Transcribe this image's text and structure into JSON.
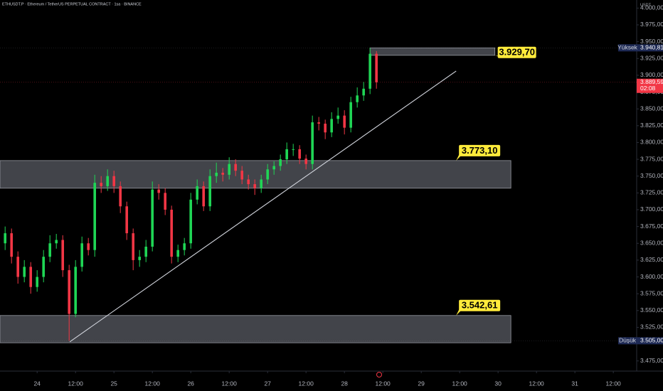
{
  "chart_data": {
    "type": "candlestick",
    "title": "ETHUSDT.P · Ethereum / TetherUS PERPETUAL CONTRACT · 1sa · BINANCE",
    "currency": "USDT",
    "up_color": "#1fd655",
    "down_color": "#f23645",
    "x": [
      -10,
      -8,
      -6,
      -4,
      -2,
      0,
      2,
      4,
      6,
      8,
      10,
      12,
      14,
      16,
      18,
      20,
      22,
      24,
      26,
      28,
      30,
      32,
      34,
      36,
      38,
      40,
      42,
      44,
      46,
      48,
      50,
      52,
      54,
      56,
      58,
      60,
      62,
      64,
      66,
      68,
      70,
      72,
      74,
      76,
      78,
      80,
      82,
      84,
      86,
      88,
      90,
      92,
      94,
      96,
      98,
      100,
      102,
      104,
      106
    ],
    "open": [
      3650,
      3665,
      3630,
      3600,
      3615,
      3585,
      3600,
      3630,
      3650,
      3655,
      3610,
      3545,
      3615,
      3650,
      3640,
      3740,
      3735,
      3750,
      3735,
      3705,
      3665,
      3625,
      3630,
      3645,
      3730,
      3725,
      3700,
      3630,
      3640,
      3650,
      3715,
      3735,
      3705,
      3750,
      3755,
      3752,
      3768,
      3758,
      3745,
      3738,
      3732,
      3745,
      3760,
      3765,
      3775,
      3790,
      3790,
      3776,
      3768,
      3830,
      3828,
      3815,
      3835,
      3840,
      3822,
      3860,
      3870,
      3880,
      3932
    ],
    "high": [
      3675,
      3672,
      3638,
      3625,
      3622,
      3610,
      3640,
      3662,
      3664,
      3662,
      3618,
      3625,
      3660,
      3658,
      3752,
      3750,
      3760,
      3758,
      3742,
      3712,
      3672,
      3640,
      3655,
      3742,
      3738,
      3732,
      3706,
      3648,
      3658,
      3725,
      3745,
      3742,
      3760,
      3770,
      3762,
      3778,
      3775,
      3765,
      3752,
      3745,
      3752,
      3768,
      3772,
      3782,
      3800,
      3798,
      3796,
      3782,
      3840,
      3838,
      3834,
      3845,
      3852,
      3848,
      3868,
      3882,
      3890,
      3940.81,
      3936
    ],
    "low": [
      3640,
      3620,
      3590,
      3592,
      3575,
      3578,
      3592,
      3622,
      3642,
      3600,
      3505,
      3540,
      3608,
      3632,
      3630,
      3725,
      3728,
      3725,
      3695,
      3655,
      3610,
      3615,
      3622,
      3638,
      3715,
      3692,
      3620,
      3622,
      3632,
      3642,
      3708,
      3698,
      3698,
      3740,
      3742,
      3745,
      3750,
      3738,
      3730,
      3722,
      3725,
      3738,
      3752,
      3758,
      3768,
      3780,
      3768,
      3760,
      3760,
      3818,
      3805,
      3808,
      3828,
      3812,
      3815,
      3852,
      3862,
      3872,
      3880
    ],
    "close": [
      3665,
      3630,
      3600,
      3615,
      3585,
      3600,
      3630,
      3650,
      3655,
      3610,
      3545,
      3615,
      3650,
      3640,
      3740,
      3735,
      3750,
      3735,
      3705,
      3665,
      3625,
      3630,
      3645,
      3730,
      3725,
      3700,
      3630,
      3640,
      3650,
      3715,
      3735,
      3705,
      3750,
      3755,
      3752,
      3768,
      3758,
      3745,
      3738,
      3732,
      3745,
      3760,
      3765,
      3775,
      3790,
      3790,
      3776,
      3768,
      3830,
      3828,
      3815,
      3835,
      3840,
      3822,
      3860,
      3870,
      3880,
      3932,
      3889.59
    ],
    "xlim": [
      -11.6,
      187.3
    ],
    "xticks": [
      {
        "value": 0,
        "label": "24"
      },
      {
        "value": 12,
        "label": "12:00"
      },
      {
        "value": 24,
        "label": "25"
      },
      {
        "value": 36,
        "label": "12:00"
      },
      {
        "value": 48,
        "label": "26"
      },
      {
        "value": 60,
        "label": "12:00"
      },
      {
        "value": 72,
        "label": "27"
      },
      {
        "value": 84,
        "label": "12:00"
      },
      {
        "value": 96,
        "label": "28"
      },
      {
        "value": 108,
        "label": "12:00"
      },
      {
        "value": 120,
        "label": "29"
      },
      {
        "value": 132,
        "label": "12:00"
      },
      {
        "value": 144,
        "label": "30"
      },
      {
        "value": 156,
        "label": "12:00"
      },
      {
        "value": 168,
        "label": "31"
      },
      {
        "value": 180,
        "label": "12:00"
      }
    ],
    "ylim": [
      3462,
      4012
    ],
    "yticks": [
      {
        "value": 3475,
        "label": "3.475,00"
      },
      {
        "value": 3525,
        "label": "3.525,00"
      },
      {
        "value": 3550,
        "label": "3.550,00"
      },
      {
        "value": 3575,
        "label": "3.575,00"
      },
      {
        "value": 3600,
        "label": "3.600,00"
      },
      {
        "value": 3625,
        "label": "3.625,00"
      },
      {
        "value": 3650,
        "label": "3.650,00"
      },
      {
        "value": 3675,
        "label": "3.675,00"
      },
      {
        "value": 3700,
        "label": "3.700,00"
      },
      {
        "value": 3725,
        "label": "3.725,00"
      },
      {
        "value": 3750,
        "label": "3.750,00"
      },
      {
        "value": 3775,
        "label": "3.775,00"
      },
      {
        "value": 3800,
        "label": "3.800,00"
      },
      {
        "value": 3825,
        "label": "3.825,00"
      },
      {
        "value": 3850,
        "label": "3.850,00"
      },
      {
        "value": 3875,
        "label": "3.875,00"
      },
      {
        "value": 3900,
        "label": "3.900,00"
      },
      {
        "value": 3925,
        "label": "3.925,00"
      },
      {
        "value": 3950,
        "label": "3.950,00"
      },
      {
        "value": 3975,
        "label": "3.975,00"
      },
      {
        "value": 4000,
        "label": "4.000,00"
      }
    ],
    "zones": [
      {
        "x": [
          104,
          143
        ],
        "top": 3940.81,
        "bottom": 3929.7,
        "value": 3929.7,
        "label": "3.929,70"
      },
      {
        "x": [
          -11.6,
          148
        ],
        "top": 3773.1,
        "bottom": 3732,
        "value": 3773.1,
        "label": "3.773,10"
      },
      {
        "x": [
          -11.6,
          148
        ],
        "top": 3542.61,
        "bottom": 3502,
        "value": 3542.61,
        "label": "3.542,61"
      }
    ],
    "trendline": {
      "x": [
        10.2,
        130.9
      ],
      "y": [
        3503.5,
        3906.3
      ]
    },
    "price_markers": [
      {
        "name": "Yüksek",
        "value": 3940.81,
        "label": "3.940,81",
        "color": "#1e2a55"
      },
      {
        "value": 3889.59,
        "label": "3.889,59",
        "countdown": "02:08",
        "color": "#f23645"
      },
      {
        "name": "Düşük",
        "value": 3505,
        "label": "3.505,00",
        "color": "#1e2a55"
      }
    ]
  }
}
